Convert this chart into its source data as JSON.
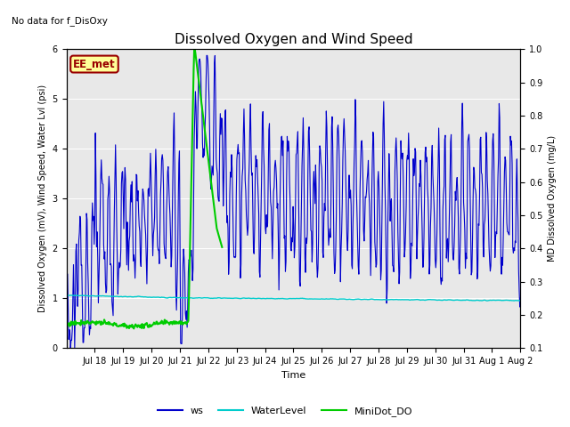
{
  "title": "Dissolved Oxygen and Wind Speed",
  "top_left_text": "No data for f_DisOxy",
  "annotation_box": "EE_met",
  "xlabel": "Time",
  "ylabel_left": "Dissolved Oxygen (mV), Wind Speed, Water Lvl (psi)",
  "ylabel_right": "MD Dissolved Oxygen (mg/L)",
  "ylim_left": [
    0.0,
    6.0
  ],
  "ylim_right": [
    0.1,
    1.0
  ],
  "bg_color": "#e8e8e8",
  "ws_color": "#0000cc",
  "waterlevel_color": "#00cccc",
  "minidot_color": "#00cc00",
  "x_tick_labels": [
    "Jul 18",
    "Jul 19",
    "Jul 20",
    "Jul 21",
    "Jul 22",
    "Jul 23",
    "Jul 24",
    "Jul 25",
    "Jul 26",
    "Jul 27",
    "Jul 28",
    "Jul 29",
    "Jul 30",
    "Jul 31",
    "Aug 1",
    "Aug 2"
  ],
  "legend_labels": [
    "ws",
    "WaterLevel",
    "MiniDot_DO"
  ],
  "legend_colors": [
    "#0000cc",
    "#00cccc",
    "#00cc00"
  ],
  "ws_linewidth": 0.8,
  "wl_linewidth": 1.0,
  "do_linewidth": 1.5,
  "title_fontsize": 11,
  "tick_fontsize": 7,
  "label_fontsize": 7,
  "legend_fontsize": 8
}
